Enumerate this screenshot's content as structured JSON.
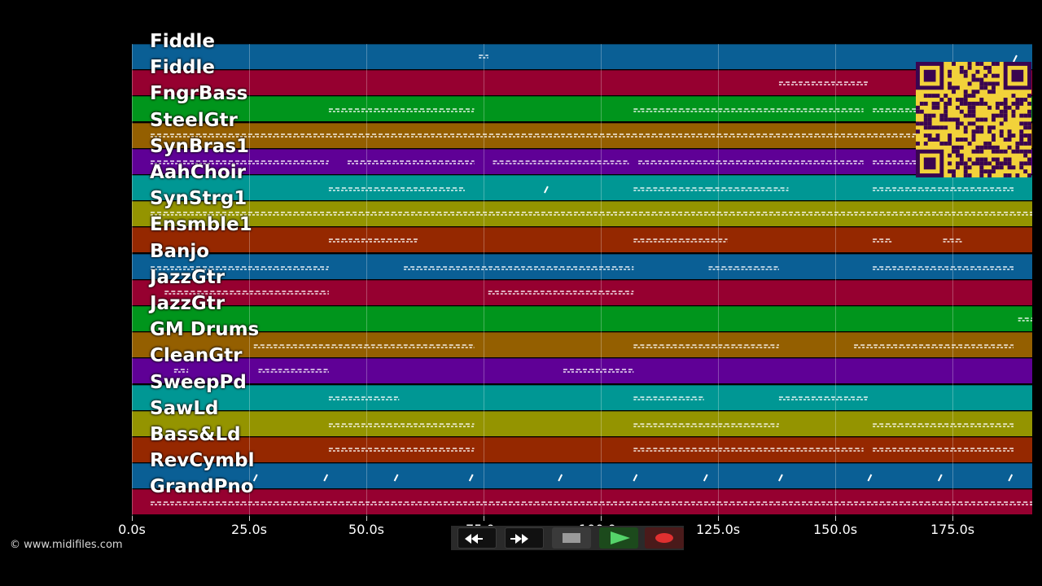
{
  "tracks": [
    {
      "name": "Fiddle",
      "color": "#0a5f95"
    },
    {
      "name": "Fiddle",
      "color": "#960030"
    },
    {
      "name": "FngrBass",
      "color": "#00951c"
    },
    {
      "name": "SteelGtr",
      "color": "#945f00"
    },
    {
      "name": "SynBras1",
      "color": "#5f0096"
    },
    {
      "name": "AahChoir",
      "color": "#009794"
    },
    {
      "name": "SynStrg1",
      "color": "#949400"
    },
    {
      "name": "Ensmble1",
      "color": "#952800"
    },
    {
      "name": "Banjo",
      "color": "#0a5f95"
    },
    {
      "name": "JazzGtr",
      "color": "#960030"
    },
    {
      "name": "JazzGtr",
      "color": "#00951c"
    },
    {
      "name": "GM Drums",
      "color": "#945f00"
    },
    {
      "name": "CleanGtr",
      "color": "#5f0096"
    },
    {
      "name": "SweepPd",
      "color": "#009794"
    },
    {
      "name": "SawLd",
      "color": "#949400"
    },
    {
      "name": "Bass&Ld",
      "color": "#952800"
    },
    {
      "name": "RevCymbl",
      "color": "#0a5f95"
    },
    {
      "name": "GrandPno",
      "color": "#960030"
    }
  ],
  "time_axis": {
    "unit": "s",
    "max_seconds": 192,
    "ticks": [
      {
        "value": 0,
        "label": "0.0s"
      },
      {
        "value": 25,
        "label": "25.0s"
      },
      {
        "value": 50,
        "label": "50.0s"
      },
      {
        "value": 75,
        "label": "75.0s"
      },
      {
        "value": 100,
        "label": "100.0s"
      },
      {
        "value": 125,
        "label": "125.0s"
      },
      {
        "value": 150,
        "label": "150.0s"
      },
      {
        "value": 175,
        "label": "175.0s"
      }
    ]
  },
  "note_segments": [
    [
      [
        74,
        76
      ],
      [
        188,
        189
      ]
    ],
    [
      [
        138,
        157
      ]
    ],
    [
      [
        42,
        73
      ],
      [
        107,
        156
      ],
      [
        158,
        188
      ]
    ],
    [
      [
        4,
        188
      ]
    ],
    [
      [
        4,
        42
      ],
      [
        46,
        73
      ],
      [
        77,
        106
      ],
      [
        108,
        156
      ],
      [
        158,
        188
      ]
    ],
    [
      [
        42,
        71
      ],
      [
        88,
        89
      ],
      [
        107,
        123
      ],
      [
        123,
        140
      ],
      [
        158,
        188
      ]
    ],
    [
      [
        4,
        192
      ]
    ],
    [
      [
        42,
        61
      ],
      [
        107,
        127
      ],
      [
        158,
        162
      ],
      [
        173,
        177
      ]
    ],
    [
      [
        4,
        42
      ],
      [
        58,
        107
      ],
      [
        123,
        138
      ],
      [
        158,
        188
      ]
    ],
    [
      [
        7,
        42
      ],
      [
        76,
        107
      ]
    ],
    [
      [
        189,
        192
      ]
    ],
    [
      [
        26,
        73
      ],
      [
        107,
        138
      ],
      [
        154,
        188
      ]
    ],
    [
      [
        9,
        12
      ],
      [
        27,
        42
      ],
      [
        92,
        107
      ]
    ],
    [
      [
        42,
        57
      ],
      [
        107,
        122
      ],
      [
        138,
        157
      ]
    ],
    [
      [
        42,
        73
      ],
      [
        107,
        138
      ],
      [
        158,
        188
      ]
    ],
    [
      [
        42,
        73
      ],
      [
        107,
        156
      ],
      [
        158,
        188
      ]
    ],
    [
      [
        26,
        27
      ],
      [
        41,
        42
      ],
      [
        56,
        57
      ],
      [
        72,
        73
      ],
      [
        91,
        92
      ],
      [
        107,
        108
      ],
      [
        122,
        123
      ],
      [
        138,
        139
      ],
      [
        157,
        158
      ],
      [
        172,
        173
      ],
      [
        187,
        188
      ]
    ],
    [
      [
        4,
        192
      ]
    ]
  ],
  "qr_code": {
    "foreground": "#3a0550",
    "background": "#f2d23a"
  },
  "transport": {
    "buttons": [
      {
        "icon": "rewind-icon"
      },
      {
        "icon": "fast-forward-icon"
      },
      {
        "icon": "stop-icon"
      },
      {
        "icon": "play-icon"
      },
      {
        "icon": "record-icon"
      }
    ]
  },
  "copyright": "© www.midifiles.com"
}
